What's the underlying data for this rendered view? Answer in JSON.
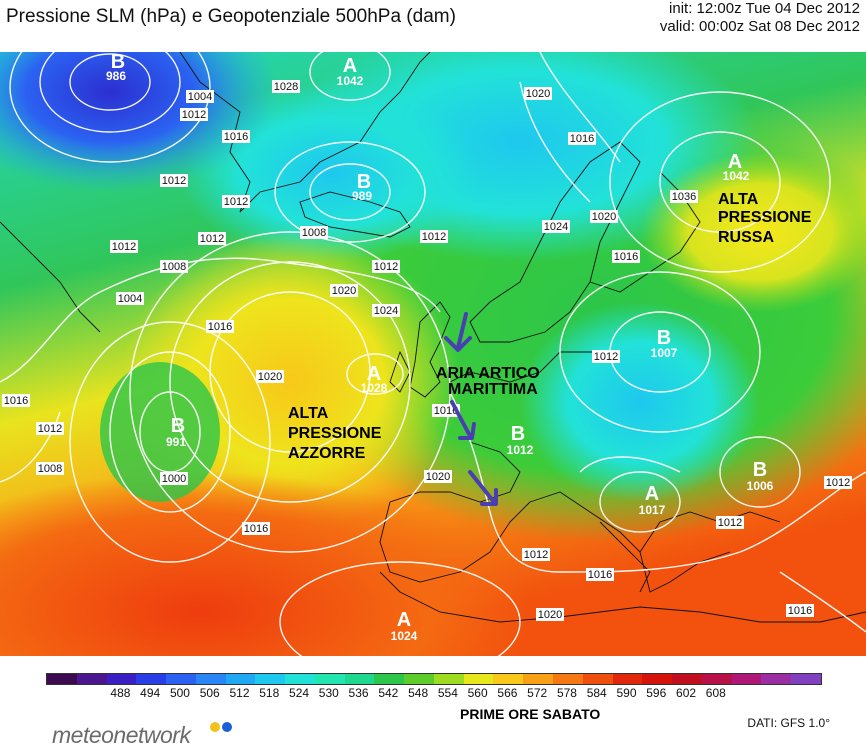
{
  "header": {
    "title": "Pressione SLM (hPa) e Geopotenziale 500hPa (dam)",
    "init": "init: 12:00z Tue 04 Dec 2012",
    "valid": "valid: 00:00z Sat 08 Dec 2012"
  },
  "annotations": {
    "alta_russa_1": "ALTA",
    "alta_russa_2": "PRESSIONE",
    "alta_russa_3": "RUSSA",
    "alta_azzorre_1": "ALTA",
    "alta_azzorre_2": "PRESSIONE",
    "alta_azzorre_3": "AZZORRE",
    "aria_1": "ARIA ARTICO",
    "aria_2": "MARITTIMA"
  },
  "centers": [
    {
      "letter": "B",
      "value": "986"
    },
    {
      "letter": "A",
      "value": "1042"
    },
    {
      "letter": "B",
      "value": "989"
    },
    {
      "letter": "A",
      "value": "1042"
    },
    {
      "letter": "B",
      "value": "1007"
    },
    {
      "letter": "A",
      "value": "1028"
    },
    {
      "letter": "B",
      "value": "991"
    },
    {
      "letter": "B",
      "value": "1012"
    },
    {
      "letter": "B",
      "value": "1006"
    },
    {
      "letter": "A",
      "value": "1017"
    },
    {
      "letter": "A",
      "value": "1024"
    }
  ],
  "isobar_labels": [
    "1004",
    "1028",
    "1020",
    "1016",
    "1012",
    "1012",
    "1008",
    "1012",
    "1012",
    "1008",
    "1012",
    "1012",
    "1020",
    "1024",
    "1016",
    "1004",
    "1012",
    "1016",
    "1016",
    "1008",
    "1020",
    "1016",
    "1012",
    "1000",
    "1020",
    "1016",
    "1012",
    "1012",
    "1012",
    "1016",
    "1016",
    "1020",
    "1024",
    "1020",
    "1036",
    "1012",
    "1016"
  ],
  "colorbar": {
    "ticks": [
      "488",
      "494",
      "500",
      "506",
      "512",
      "518",
      "524",
      "530",
      "536",
      "542",
      "548",
      "554",
      "560",
      "566",
      "572",
      "578",
      "584",
      "590",
      "596",
      "602",
      "608"
    ],
    "colors": [
      "#3b0a4f",
      "#4b1690",
      "#3a1fc4",
      "#2a3ee6",
      "#2b62f2",
      "#2a86f6",
      "#21a8f4",
      "#1ec8ee",
      "#22e2d8",
      "#22e6b0",
      "#1ed890",
      "#2cc64a",
      "#5ccd2a",
      "#9edc22",
      "#e6e81c",
      "#f8c81a",
      "#f8a016",
      "#f67812",
      "#f0500e",
      "#e2280c",
      "#d4140a",
      "#c01020",
      "#b81048",
      "#b01878",
      "#9a2ea2",
      "#8040c0"
    ],
    "title": "PRIME ORE SABATO"
  },
  "footer": {
    "dati": "DATI:  GFS  1.0°",
    "logo": "meteonetwork",
    "logo_dot_colors": [
      "#f3c21a",
      "#1a5fd6"
    ]
  }
}
